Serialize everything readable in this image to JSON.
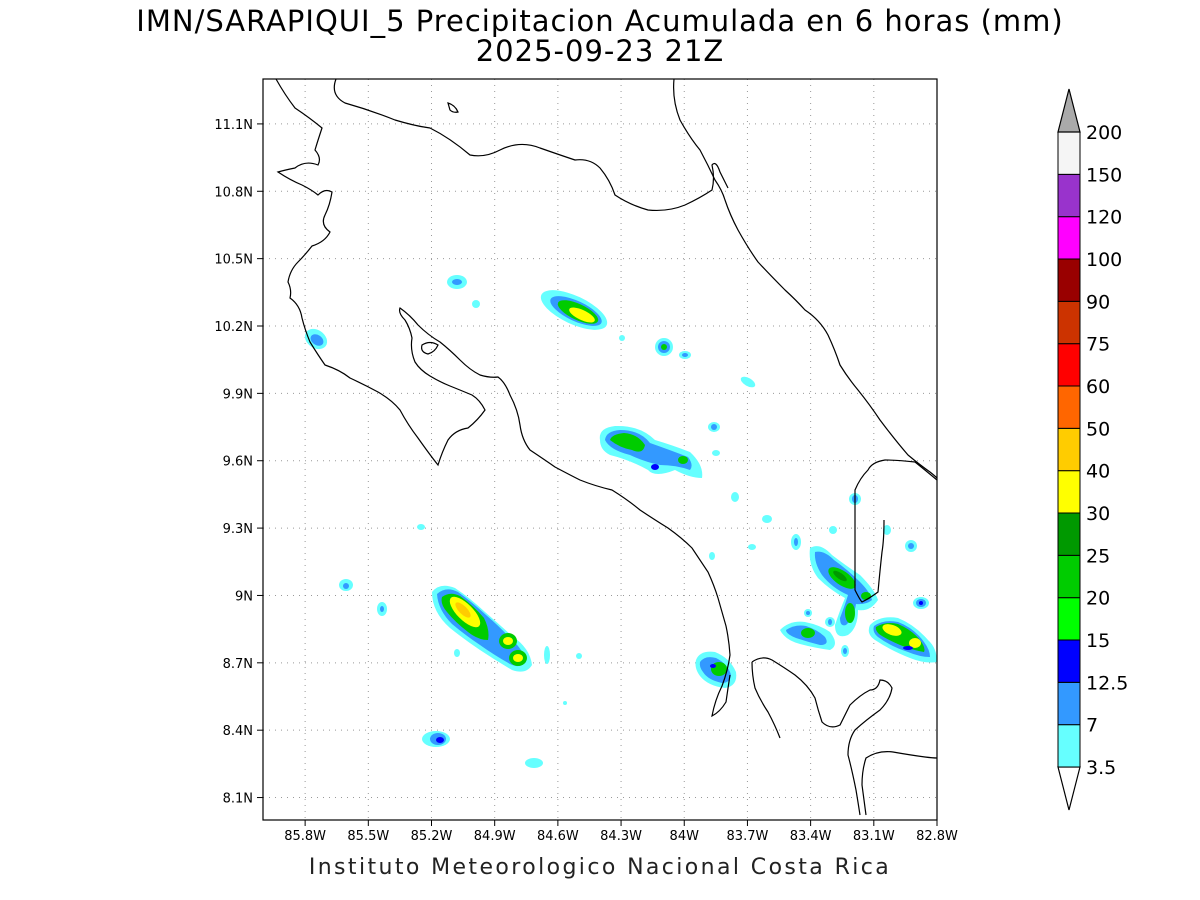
{
  "title_line1": "IMN/SARAPIQUI_5 Precipitacion Acumulada en 6 horas (mm)",
  "title_line2": "2025-09-23 21Z",
  "footer": "Instituto Meteorologico Nacional Costa Rica",
  "map": {
    "lat_ticks": [
      "11.1N",
      "10.8N",
      "10.5N",
      "10.2N",
      "9.9N",
      "9.6N",
      "9.3N",
      "9N",
      "8.7N",
      "8.4N",
      "8.1N"
    ],
    "lon_ticks": [
      "85.8W",
      "85.5W",
      "85.2W",
      "84.9W",
      "84.6W",
      "84.3W",
      "84W",
      "83.7W",
      "83.4W",
      "83.1W",
      "82.8W"
    ],
    "lat_range": [
      8.0,
      11.3
    ],
    "lon_range": [
      -86.0,
      -82.8
    ]
  },
  "colorbar": {
    "labels": [
      "3.5",
      "7",
      "12.5",
      "15",
      "20",
      "25",
      "30",
      "40",
      "50",
      "60",
      "75",
      "90",
      "100",
      "120",
      "150",
      "200"
    ],
    "colors": [
      "#ffffff",
      "#66ffff",
      "#3399ff",
      "#0000ff",
      "#00ff00",
      "#00cc00",
      "#009900",
      "#ffff00",
      "#ffcc00",
      "#ff6600",
      "#ff0000",
      "#cc3300",
      "#990000",
      "#ff00ff",
      "#9933cc",
      "#f5f5f5",
      "#aaaaaa"
    ]
  }
}
